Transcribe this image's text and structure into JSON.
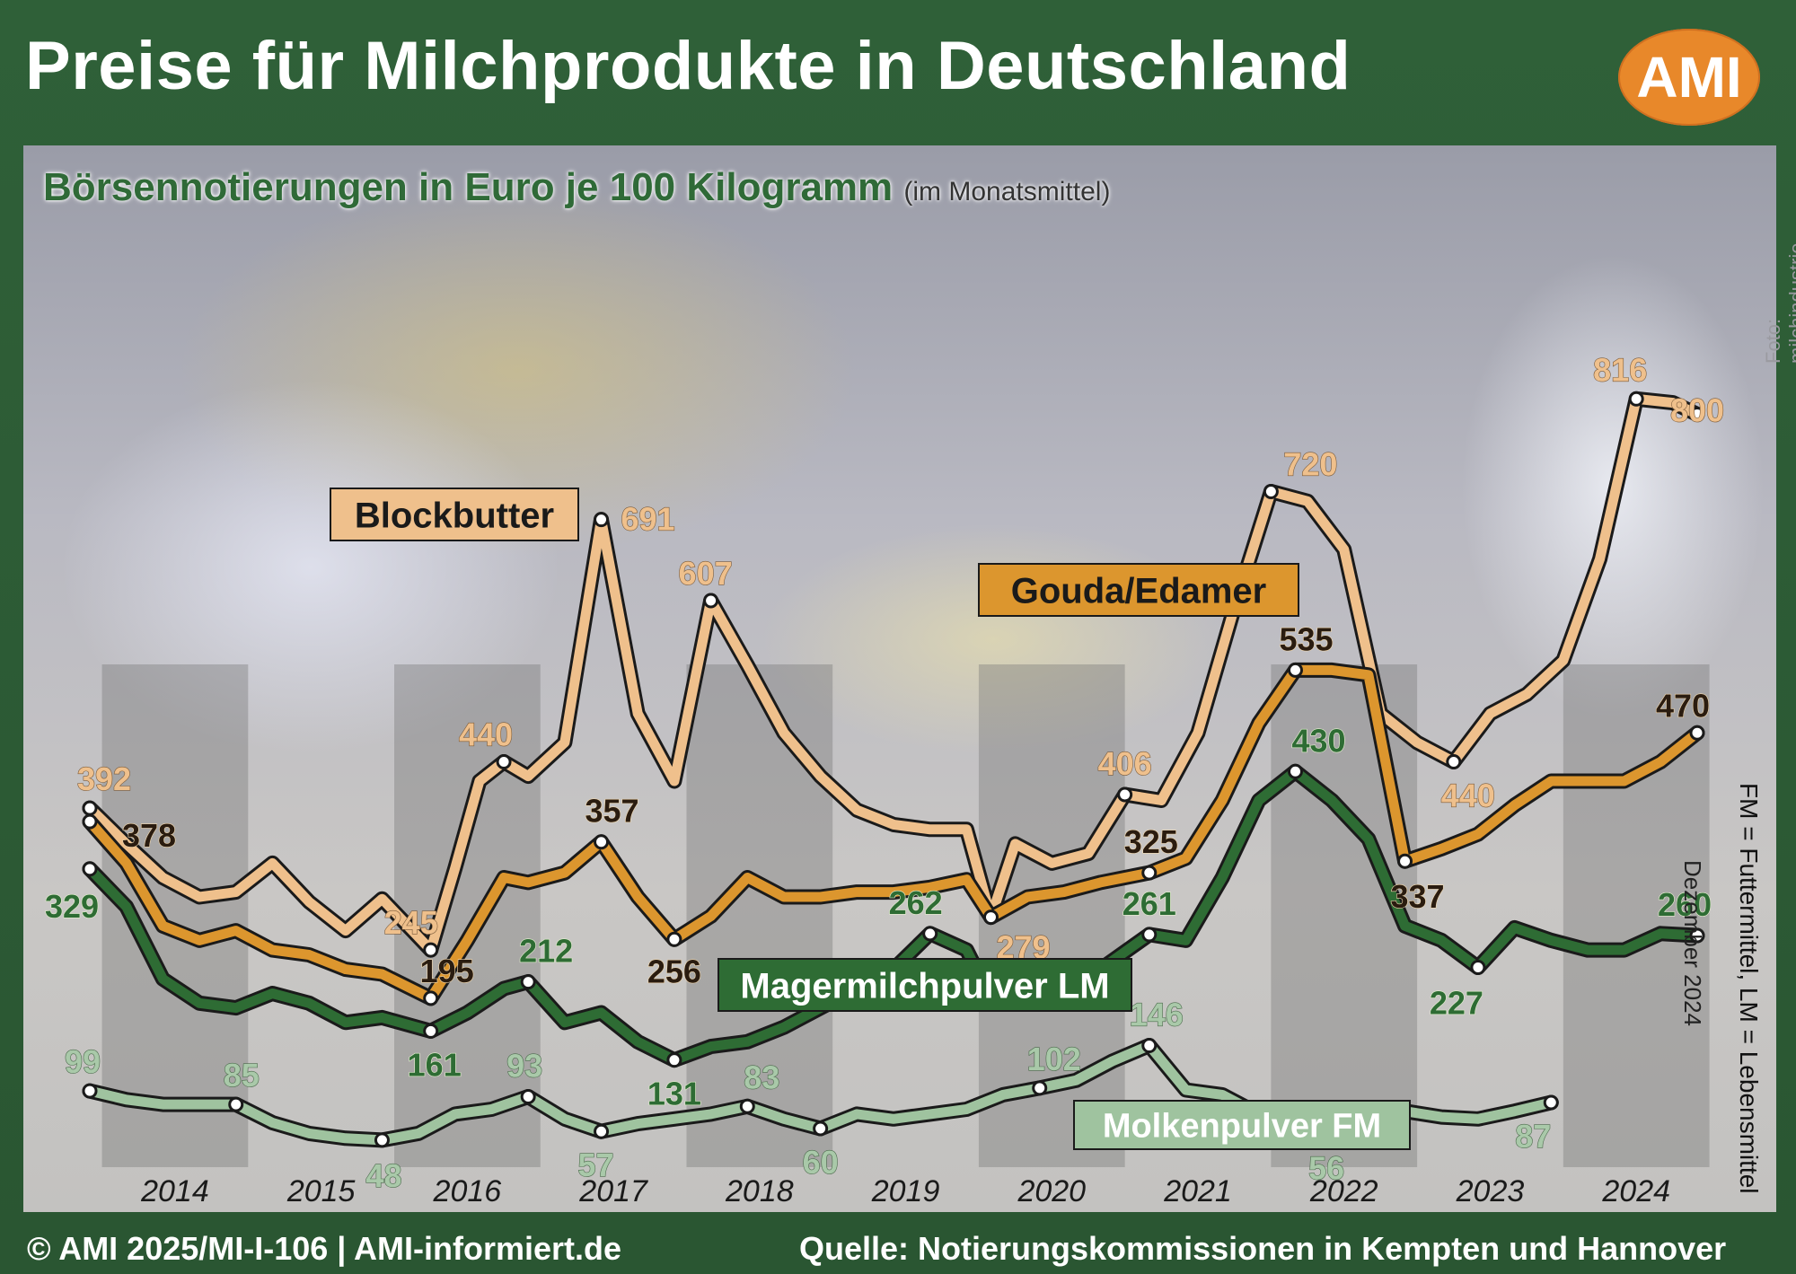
{
  "header": {
    "title": "Preise für Milchprodukte in Deutschland",
    "logo_text": "AMI"
  },
  "subtitle": {
    "main": "Börsennotierungen in Euro je 100 Kilogramm",
    "small": "(im Monatsmittel)"
  },
  "photo_credit": "Foto: milchindustrie",
  "side_note": "Dezember 2024",
  "side_legend": "FM = Futtermittel, LM = Lebensmittel",
  "footer": {
    "left": "© AMI 2025/MI-I-106 | AMI-informiert.de",
    "right": "Quelle: Notierungskommissionen in Kempten und Hannover"
  },
  "colors": {
    "blockbutter": "#efc08c",
    "gouda": "#dc962e",
    "magermilch": "#2e6c34",
    "molken": "#9fc39f",
    "frame": "#2c5a34",
    "logo": "#e8882a"
  },
  "chart_data": {
    "type": "line",
    "title": "Börsennotierungen in Euro je 100 Kilogramm",
    "x_axis": {
      "type": "time",
      "tick_labels": [
        "2014",
        "2015",
        "2016",
        "2017",
        "2018",
        "2019",
        "2020",
        "2021",
        "2022",
        "2023",
        "2024"
      ],
      "range": [
        "2013-12",
        "2024-12"
      ]
    },
    "y_axis": {
      "range": [
        0,
        850
      ],
      "shown": false
    },
    "grid": "alternating year bands",
    "series": [
      {
        "name": "Blockbutter",
        "color": "#efc08c",
        "points": [
          [
            "2013-12",
            392
          ],
          [
            "2014-03",
            355
          ],
          [
            "2014-06",
            320
          ],
          [
            "2014-09",
            300
          ],
          [
            "2014-12",
            305
          ],
          [
            "2015-03",
            335
          ],
          [
            "2015-06",
            295
          ],
          [
            "2015-09",
            265
          ],
          [
            "2015-12",
            298
          ],
          [
            "2016-04",
            245
          ],
          [
            "2016-06",
            330
          ],
          [
            "2016-08",
            420
          ],
          [
            "2016-10",
            440
          ],
          [
            "2016-12",
            425
          ],
          [
            "2017-03",
            460
          ],
          [
            "2017-06",
            691
          ],
          [
            "2017-09",
            490
          ],
          [
            "2017-12",
            420
          ],
          [
            "2018-03",
            607
          ],
          [
            "2018-06",
            540
          ],
          [
            "2018-09",
            470
          ],
          [
            "2018-12",
            425
          ],
          [
            "2019-03",
            390
          ],
          [
            "2019-06",
            375
          ],
          [
            "2019-09",
            370
          ],
          [
            "2019-12",
            370
          ],
          [
            "2020-02",
            279
          ],
          [
            "2020-04",
            355
          ],
          [
            "2020-07",
            335
          ],
          [
            "2020-10",
            345
          ],
          [
            "2021-01",
            406
          ],
          [
            "2021-04",
            400
          ],
          [
            "2021-07",
            470
          ],
          [
            "2021-10",
            600
          ],
          [
            "2022-01",
            720
          ],
          [
            "2022-04",
            710
          ],
          [
            "2022-07",
            660
          ],
          [
            "2022-10",
            490
          ],
          [
            "2023-01",
            460
          ],
          [
            "2023-04",
            440
          ],
          [
            "2023-07",
            490
          ],
          [
            "2023-10",
            510
          ],
          [
            "2024-01",
            545
          ],
          [
            "2024-04",
            650
          ],
          [
            "2024-07",
            816
          ],
          [
            "2024-10",
            812
          ],
          [
            "2024-12",
            800
          ]
        ]
      },
      {
        "name": "Gouda/Edamer",
        "color": "#dc962e",
        "points": [
          [
            "2013-12",
            378
          ],
          [
            "2014-03",
            335
          ],
          [
            "2014-06",
            270
          ],
          [
            "2014-09",
            255
          ],
          [
            "2014-12",
            265
          ],
          [
            "2015-03",
            245
          ],
          [
            "2015-06",
            240
          ],
          [
            "2015-09",
            225
          ],
          [
            "2015-12",
            220
          ],
          [
            "2016-04",
            195
          ],
          [
            "2016-07",
            255
          ],
          [
            "2016-10",
            320
          ],
          [
            "2016-12",
            315
          ],
          [
            "2017-03",
            325
          ],
          [
            "2017-06",
            357
          ],
          [
            "2017-09",
            300
          ],
          [
            "2017-12",
            256
          ],
          [
            "2018-03",
            280
          ],
          [
            "2018-06",
            320
          ],
          [
            "2018-09",
            300
          ],
          [
            "2018-12",
            300
          ],
          [
            "2019-03",
            305
          ],
          [
            "2019-06",
            305
          ],
          [
            "2019-09",
            310
          ],
          [
            "2019-12",
            318
          ],
          [
            "2020-02",
            279
          ],
          [
            "2020-05",
            300
          ],
          [
            "2020-08",
            305
          ],
          [
            "2020-11",
            315
          ],
          [
            "2021-03",
            325
          ],
          [
            "2021-06",
            340
          ],
          [
            "2021-09",
            400
          ],
          [
            "2021-12",
            480
          ],
          [
            "2022-03",
            535
          ],
          [
            "2022-06",
            535
          ],
          [
            "2022-09",
            530
          ],
          [
            "2022-12",
            337
          ],
          [
            "2023-03",
            350
          ],
          [
            "2023-06",
            365
          ],
          [
            "2023-09",
            395
          ],
          [
            "2023-12",
            420
          ],
          [
            "2024-03",
            420
          ],
          [
            "2024-06",
            420
          ],
          [
            "2024-09",
            440
          ],
          [
            "2024-12",
            470
          ]
        ]
      },
      {
        "name": "Magermilchpulver LM",
        "color": "#2e6c34",
        "points": [
          [
            "2013-12",
            329
          ],
          [
            "2014-03",
            290
          ],
          [
            "2014-06",
            215
          ],
          [
            "2014-09",
            190
          ],
          [
            "2014-12",
            185
          ],
          [
            "2015-03",
            200
          ],
          [
            "2015-06",
            190
          ],
          [
            "2015-09",
            170
          ],
          [
            "2015-12",
            175
          ],
          [
            "2016-04",
            161
          ],
          [
            "2016-07",
            180
          ],
          [
            "2016-10",
            205
          ],
          [
            "2016-12",
            212
          ],
          [
            "2017-03",
            170
          ],
          [
            "2017-06",
            180
          ],
          [
            "2017-09",
            150
          ],
          [
            "2017-12",
            131
          ],
          [
            "2018-03",
            145
          ],
          [
            "2018-06",
            150
          ],
          [
            "2018-09",
            165
          ],
          [
            "2018-12",
            185
          ],
          [
            "2019-03",
            205
          ],
          [
            "2019-06",
            225
          ],
          [
            "2019-09",
            262
          ],
          [
            "2019-12",
            245
          ],
          [
            "2020-02",
            195
          ],
          [
            "2020-05",
            210
          ],
          [
            "2020-08",
            215
          ],
          [
            "2020-11",
            225
          ],
          [
            "2021-03",
            261
          ],
          [
            "2021-06",
            255
          ],
          [
            "2021-09",
            320
          ],
          [
            "2021-12",
            400
          ],
          [
            "2022-03",
            430
          ],
          [
            "2022-06",
            400
          ],
          [
            "2022-09",
            360
          ],
          [
            "2022-12",
            270
          ],
          [
            "2023-03",
            255
          ],
          [
            "2023-06",
            227
          ],
          [
            "2023-09",
            268
          ],
          [
            "2023-12",
            255
          ],
          [
            "2024-03",
            245
          ],
          [
            "2024-06",
            245
          ],
          [
            "2024-09",
            262
          ],
          [
            "2024-12",
            260
          ]
        ]
      },
      {
        "name": "Molkenpulver FM",
        "color": "#9fc39f",
        "points": [
          [
            "2013-12",
            99
          ],
          [
            "2014-03",
            90
          ],
          [
            "2014-06",
            85
          ],
          [
            "2014-09",
            85
          ],
          [
            "2014-12",
            85
          ],
          [
            "2015-03",
            66
          ],
          [
            "2015-06",
            55
          ],
          [
            "2015-09",
            50
          ],
          [
            "2015-12",
            48
          ],
          [
            "2016-03",
            55
          ],
          [
            "2016-06",
            75
          ],
          [
            "2016-09",
            80
          ],
          [
            "2016-12",
            93
          ],
          [
            "2017-03",
            70
          ],
          [
            "2017-06",
            57
          ],
          [
            "2017-09",
            65
          ],
          [
            "2017-12",
            70
          ],
          [
            "2018-03",
            75
          ],
          [
            "2018-06",
            83
          ],
          [
            "2018-09",
            70
          ],
          [
            "2018-12",
            60
          ],
          [
            "2019-03",
            75
          ],
          [
            "2019-06",
            70
          ],
          [
            "2019-09",
            75
          ],
          [
            "2019-12",
            80
          ],
          [
            "2020-03",
            95
          ],
          [
            "2020-06",
            102
          ],
          [
            "2020-09",
            110
          ],
          [
            "2020-12",
            130
          ],
          [
            "2021-03",
            146
          ],
          [
            "2021-06",
            100
          ],
          [
            "2021-09",
            95
          ],
          [
            "2021-12",
            75
          ],
          [
            "2022-03",
            60
          ],
          [
            "2022-06",
            56
          ],
          [
            "2022-09",
            75
          ],
          [
            "2022-12",
            78
          ],
          [
            "2023-03",
            72
          ],
          [
            "2023-06",
            70
          ],
          [
            "2023-09",
            78
          ],
          [
            "2023-12",
            87
          ]
        ]
      }
    ],
    "annotations": [
      {
        "series": "Blockbutter",
        "date": "2013-12",
        "value": 392,
        "text": "392"
      },
      {
        "series": "Blockbutter",
        "date": "2016-04",
        "value": 245,
        "text": "245"
      },
      {
        "series": "Blockbutter",
        "date": "2016-10",
        "value": 440,
        "text": "440"
      },
      {
        "series": "Blockbutter",
        "date": "2017-06",
        "value": 691,
        "text": "691"
      },
      {
        "series": "Blockbutter",
        "date": "2018-03",
        "value": 607,
        "text": "607"
      },
      {
        "series": "Blockbutter",
        "date": "2020-02",
        "value": 279,
        "text": "279"
      },
      {
        "series": "Blockbutter",
        "date": "2021-01",
        "value": 406,
        "text": "406"
      },
      {
        "series": "Blockbutter",
        "date": "2022-01",
        "value": 720,
        "text": "720"
      },
      {
        "series": "Blockbutter",
        "date": "2023-04",
        "value": 440,
        "text": "440"
      },
      {
        "series": "Blockbutter",
        "date": "2024-07",
        "value": 816,
        "text": "816"
      },
      {
        "series": "Blockbutter",
        "date": "2024-12",
        "value": 800,
        "text": "800"
      },
      {
        "series": "Gouda/Edamer",
        "date": "2013-12",
        "value": 378,
        "text": "378"
      },
      {
        "series": "Gouda/Edamer",
        "date": "2016-04",
        "value": 195,
        "text": "195"
      },
      {
        "series": "Gouda/Edamer",
        "date": "2017-06",
        "value": 357,
        "text": "357"
      },
      {
        "series": "Gouda/Edamer",
        "date": "2017-12",
        "value": 256,
        "text": "256"
      },
      {
        "series": "Gouda/Edamer",
        "date": "2021-03",
        "value": 325,
        "text": "325"
      },
      {
        "series": "Gouda/Edamer",
        "date": "2022-03",
        "value": 535,
        "text": "535"
      },
      {
        "series": "Gouda/Edamer",
        "date": "2022-12",
        "value": 337,
        "text": "337"
      },
      {
        "series": "Gouda/Edamer",
        "date": "2024-12",
        "value": 470,
        "text": "470"
      },
      {
        "series": "Magermilchpulver LM",
        "date": "2013-12",
        "value": 329,
        "text": "329"
      },
      {
        "series": "Magermilchpulver LM",
        "date": "2016-04",
        "value": 161,
        "text": "161"
      },
      {
        "series": "Magermilchpulver LM",
        "date": "2016-12",
        "value": 212,
        "text": "212"
      },
      {
        "series": "Magermilchpulver LM",
        "date": "2017-12",
        "value": 131,
        "text": "131"
      },
      {
        "series": "Magermilchpulver LM",
        "date": "2019-09",
        "value": 262,
        "text": "262"
      },
      {
        "series": "Magermilchpulver LM",
        "date": "2021-03",
        "value": 261,
        "text": "261"
      },
      {
        "series": "Magermilchpulver LM",
        "date": "2022-03",
        "value": 430,
        "text": "430"
      },
      {
        "series": "Magermilchpulver LM",
        "date": "2023-06",
        "value": 227,
        "text": "227"
      },
      {
        "series": "Magermilchpulver LM",
        "date": "2024-12",
        "value": 260,
        "text": "260"
      },
      {
        "series": "Molkenpulver FM",
        "date": "2013-12",
        "value": 99,
        "text": "99"
      },
      {
        "series": "Molkenpulver FM",
        "date": "2014-12",
        "value": 85,
        "text": "85"
      },
      {
        "series": "Molkenpulver FM",
        "date": "2015-12",
        "value": 48,
        "text": "48"
      },
      {
        "series": "Molkenpulver FM",
        "date": "2016-12",
        "value": 93,
        "text": "93"
      },
      {
        "series": "Molkenpulver FM",
        "date": "2017-06",
        "value": 57,
        "text": "57"
      },
      {
        "series": "Molkenpulver FM",
        "date": "2018-06",
        "value": 83,
        "text": "83"
      },
      {
        "series": "Molkenpulver FM",
        "date": "2018-12",
        "value": 60,
        "text": "60"
      },
      {
        "series": "Molkenpulver FM",
        "date": "2020-06",
        "value": 102,
        "text": "102"
      },
      {
        "series": "Molkenpulver FM",
        "date": "2021-03",
        "value": 146,
        "text": "146"
      },
      {
        "series": "Molkenpulver FM",
        "date": "2022-06",
        "value": 56,
        "text": "56"
      },
      {
        "series": "Molkenpulver FM",
        "date": "2023-12",
        "value": 87,
        "text": "87"
      }
    ]
  }
}
